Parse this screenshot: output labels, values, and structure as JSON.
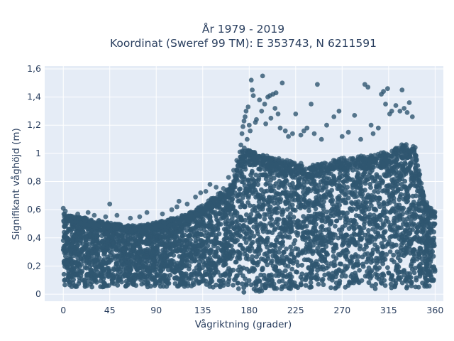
{
  "chart_data": {
    "type": "scatter",
    "title_line1": "År 1979 - 2019",
    "title_line2": "Koordinat (Sweref 99 TM): E 353743, N 6211591",
    "xlabel": "Vågriktning (grader)",
    "ylabel": "Signifikant våghöjd (m)",
    "xlim": [
      -18,
      368
    ],
    "ylim": [
      -0.05,
      1.62
    ],
    "xticks": [
      0,
      45,
      90,
      135,
      180,
      225,
      270,
      315,
      360
    ],
    "xtick_labels": [
      "0",
      "45",
      "90",
      "135",
      "180",
      "225",
      "270",
      "315",
      "360"
    ],
    "yticks": [
      0,
      0.2,
      0.4,
      0.6,
      0.8,
      1.0,
      1.2,
      1.4,
      1.6
    ],
    "ytick_labels": [
      "0",
      "0,2",
      "0,4",
      "0,6",
      "0,8",
      "1",
      "1,2",
      "1,4",
      "1,6"
    ],
    "grid": true,
    "marker_color": "#2f5670",
    "plot_background": "#e5ecf6",
    "envelope": {
      "direction_deg": [
        0,
        5,
        15,
        30,
        45,
        60,
        75,
        90,
        105,
        120,
        130,
        140,
        150,
        160,
        165,
        170,
        175,
        180,
        190,
        200,
        210,
        225,
        240,
        255,
        270,
        285,
        300,
        315,
        325,
        335,
        340,
        345,
        350,
        355,
        360
      ],
      "min_height_m": [
        0.05,
        0.05,
        0.05,
        0.05,
        0.05,
        0.05,
        0.05,
        0.05,
        0.05,
        0.05,
        0.05,
        0.05,
        0.04,
        0.03,
        0.02,
        0.01,
        0.01,
        0.01,
        0.01,
        0.02,
        0.03,
        0.04,
        0.04,
        0.04,
        0.04,
        0.04,
        0.04,
        0.03,
        0.03,
        0.03,
        0.04,
        0.04,
        0.05,
        0.05,
        0.06
      ],
      "max_height_m": [
        0.56,
        0.55,
        0.54,
        0.52,
        0.5,
        0.48,
        0.48,
        0.5,
        0.53,
        0.56,
        0.6,
        0.65,
        0.7,
        0.74,
        0.8,
        0.95,
        1.02,
        1.02,
        0.98,
        0.96,
        0.95,
        0.92,
        0.9,
        0.92,
        0.95,
        0.96,
        0.97,
        1.0,
        1.04,
        1.05,
        1.05,
        0.85,
        0.65,
        0.6,
        0.58
      ]
    },
    "outlier_points": [
      [
        0,
        0.61
      ],
      [
        2,
        0.59
      ],
      [
        14,
        0.57
      ],
      [
        24,
        0.58
      ],
      [
        30,
        0.56
      ],
      [
        41,
        0.55
      ],
      [
        45,
        0.64
      ],
      [
        52,
        0.56
      ],
      [
        65,
        0.54
      ],
      [
        74,
        0.55
      ],
      [
        81,
        0.58
      ],
      [
        96,
        0.57
      ],
      [
        105,
        0.6
      ],
      [
        110,
        0.62
      ],
      [
        112,
        0.66
      ],
      [
        120,
        0.64
      ],
      [
        128,
        0.69
      ],
      [
        133,
        0.72
      ],
      [
        138,
        0.73
      ],
      [
        142,
        0.78
      ],
      [
        148,
        0.76
      ],
      [
        155,
        0.75
      ],
      [
        160,
        0.83
      ],
      [
        165,
        0.88
      ],
      [
        168,
        0.95
      ],
      [
        171,
        1.01
      ],
      [
        172,
        1.06
      ],
      [
        173,
        1.14
      ],
      [
        174,
        1.19
      ],
      [
        175,
        1.23
      ],
      [
        176,
        1.26
      ],
      [
        177,
        1.3
      ],
      [
        178,
        1.1
      ],
      [
        179,
        1.33
      ],
      [
        180,
        1.2
      ],
      [
        181,
        1.16
      ],
      [
        182,
        1.52
      ],
      [
        183,
        1.45
      ],
      [
        184,
        1.41
      ],
      [
        186,
        1.22
      ],
      [
        187,
        1.24
      ],
      [
        190,
        1.38
      ],
      [
        192,
        1.3
      ],
      [
        193,
        1.55
      ],
      [
        195,
        1.35
      ],
      [
        196,
        1.21
      ],
      [
        198,
        1.4
      ],
      [
        200,
        1.41
      ],
      [
        201,
        1.25
      ],
      [
        203,
        1.42
      ],
      [
        205,
        1.32
      ],
      [
        206,
        1.43
      ],
      [
        208,
        1.28
      ],
      [
        210,
        1.18
      ],
      [
        212,
        1.5
      ],
      [
        215,
        1.16
      ],
      [
        218,
        1.12
      ],
      [
        222,
        1.14
      ],
      [
        225,
        1.28
      ],
      [
        230,
        1.13
      ],
      [
        233,
        1.16
      ],
      [
        236,
        1.18
      ],
      [
        240,
        1.35
      ],
      [
        243,
        1.14
      ],
      [
        246,
        1.49
      ],
      [
        250,
        1.1
      ],
      [
        255,
        1.2
      ],
      [
        262,
        1.26
      ],
      [
        267,
        1.3
      ],
      [
        270,
        1.12
      ],
      [
        276,
        1.15
      ],
      [
        282,
        1.27
      ],
      [
        288,
        1.1
      ],
      [
        292,
        1.49
      ],
      [
        295,
        1.47
      ],
      [
        298,
        1.2
      ],
      [
        300,
        1.14
      ],
      [
        305,
        1.18
      ],
      [
        308,
        1.42
      ],
      [
        310,
        1.44
      ],
      [
        312,
        1.35
      ],
      [
        314,
        1.46
      ],
      [
        316,
        1.28
      ],
      [
        318,
        1.3
      ],
      [
        322,
        1.34
      ],
      [
        326,
        1.3
      ],
      [
        328,
        1.45
      ],
      [
        330,
        1.32
      ],
      [
        333,
        1.29
      ],
      [
        335,
        1.36
      ],
      [
        338,
        1.26
      ],
      [
        342,
        0.95
      ],
      [
        345,
        0.8
      ],
      [
        348,
        0.72
      ],
      [
        352,
        0.65
      ],
      [
        356,
        0.61
      ]
    ]
  }
}
